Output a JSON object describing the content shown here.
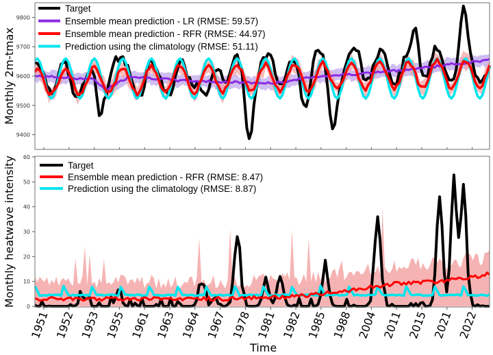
{
  "chart_data": [
    {
      "type": "line",
      "panel": "top",
      "title": "",
      "xlabel": "",
      "ylabel": "Monthly 2m-tmax",
      "ylim": [
        9350,
        9850
      ],
      "yticks": [
        9400,
        9500,
        9600,
        9700,
        9800
      ],
      "grid": false,
      "legend_position": "top-left",
      "n_points": 192,
      "series": [
        {
          "name": "Target",
          "color": "#000000",
          "role": "target",
          "seasonal_mean": 9600,
          "amplitude": 60,
          "anomalies": [
            [
              0,
              0
            ],
            [
              16,
              -60
            ],
            [
              27,
              -150
            ],
            [
              33,
              60
            ],
            [
              45,
              -40
            ],
            [
              58,
              -60
            ],
            [
              72,
              -130
            ],
            [
              78,
              40
            ],
            [
              90,
              -190
            ],
            [
              100,
              30
            ],
            [
              113,
              -100
            ],
            [
              118,
              60
            ],
            [
              125,
              -170
            ],
            [
              136,
              60
            ],
            [
              147,
              40
            ],
            [
              160,
              130
            ],
            [
              168,
              20
            ],
            [
              180,
              170
            ],
            [
              191,
              -30
            ]
          ]
        },
        {
          "name": "Ensemble mean prediction - LR (RMSE: 59.57)",
          "color": "#8a2be2",
          "role": "lr",
          "trend": [
            [
              0,
              9600
            ],
            [
              24,
              9590
            ],
            [
              30,
              9555
            ],
            [
              40,
              9600
            ],
            [
              60,
              9585
            ],
            [
              80,
              9580
            ],
            [
              100,
              9575
            ],
            [
              120,
              9600
            ],
            [
              140,
              9610
            ],
            [
              160,
              9625
            ],
            [
              175,
              9640
            ],
            [
              191,
              9655
            ]
          ]
        },
        {
          "name": "Ensemble mean prediction - RFR (RMSE: 44.97)",
          "color": "#ff0000",
          "role": "rfr"
        },
        {
          "name": "Prediction using the climatology (RMSE: 51.11)",
          "color": "#00e5ee",
          "role": "clim",
          "seasonal_mean": 9595,
          "amplitude": 65
        }
      ]
    },
    {
      "type": "line",
      "panel": "bottom",
      "title": "",
      "xlabel": "Time",
      "ylabel": "Monthly heatwave intensity",
      "ylim": [
        0,
        60
      ],
      "yticks": [
        0,
        10,
        20,
        30,
        40,
        50,
        60
      ],
      "grid": false,
      "legend_position": "top-left",
      "n_points": 192,
      "series": [
        {
          "name": "Target",
          "color": "#000000",
          "role": "target",
          "peaks": [
            [
              20,
              4
            ],
            [
              35,
              5
            ],
            [
              70,
              9
            ],
            [
              85,
              28
            ],
            [
              97,
              10
            ],
            [
              103,
              12
            ],
            [
              122,
              15
            ],
            [
              144,
              36
            ],
            [
              170,
              44
            ],
            [
              176,
              49
            ],
            [
              180,
              45
            ]
          ]
        },
        {
          "name": "Ensemble mean prediction - RFR (RMSE: 8.47)",
          "color": "#ff0000",
          "role": "rfr",
          "trend": [
            [
              0,
              3
            ],
            [
              40,
              3
            ],
            [
              80,
              3
            ],
            [
              110,
              4
            ],
            [
              130,
              6
            ],
            [
              150,
              9
            ],
            [
              170,
              10
            ],
            [
              185,
              12
            ],
            [
              191,
              13
            ]
          ]
        },
        {
          "name": "Prediction using the climatology (RMSE: 8.87)",
          "color": "#00e5ee",
          "role": "clim",
          "base": 4.5,
          "bump": 8
        }
      ]
    }
  ],
  "x_tick_labels": [
    "1951",
    "1952",
    "1953",
    "1955",
    "1961",
    "1963",
    "1964",
    "1967",
    "1978",
    "1981",
    "1982",
    "1985",
    "1988",
    "2004",
    "2011",
    "2015",
    "2021",
    "2022"
  ],
  "band_color": "#f4a6a6",
  "lr_band_color": "#c7b3ee"
}
